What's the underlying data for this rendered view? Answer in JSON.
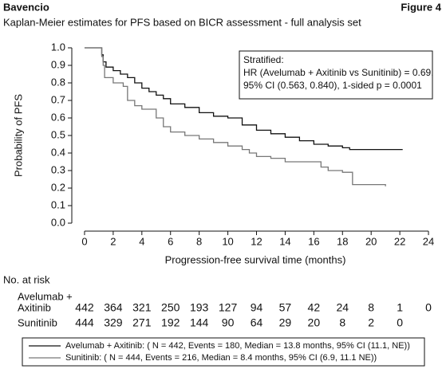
{
  "header": {
    "brand": "Bavencio",
    "figure": "Figure 4"
  },
  "chart_data": {
    "type": "step",
    "title": "Kaplan-Meier estimates for PFS based on BICR assessment - full analysis set",
    "x_label": "Progression-free survival time (months)",
    "y_label": "Probability of PFS",
    "xlim": [
      -1,
      25
    ],
    "xticks": [
      0,
      2,
      4,
      6,
      8,
      10,
      12,
      14,
      16,
      18,
      20,
      22,
      24
    ],
    "ylim": [
      0,
      1
    ],
    "yticks": [
      {
        "value": 0,
        "label": "0.0"
      },
      0.1,
      0.2,
      0.3,
      0.4,
      0.5,
      0.6,
      0.7,
      0.8,
      0.9,
      {
        "value": 1,
        "label": "1.0"
      }
    ],
    "annotation": [
      "Stratified:",
      "HR (Avelumab + Axitinib vs Sunitinib) = 0.69,",
      "95% CI (0.563, 0.840), 1-sided p = 0.0001"
    ],
    "series": [
      {
        "name": "Avelumab + Axitinib: ( N = 442, Events = 180, Median = 13.8 months, 95% CI (11.1, NE))",
        "color": "#111111",
        "x": [
          0,
          1.2,
          1.3,
          1.5,
          2,
          2.5,
          3,
          3.5,
          4,
          4.5,
          5,
          5.5,
          6,
          7,
          8,
          9,
          10,
          11,
          12,
          13,
          14,
          15,
          16,
          17,
          18,
          18.5,
          22.2
        ],
        "values": [
          1.0,
          0.96,
          0.92,
          0.89,
          0.87,
          0.85,
          0.83,
          0.8,
          0.77,
          0.75,
          0.73,
          0.71,
          0.68,
          0.66,
          0.63,
          0.61,
          0.6,
          0.56,
          0.53,
          0.51,
          0.49,
          0.47,
          0.45,
          0.44,
          0.43,
          0.42,
          0.42
        ]
      },
      {
        "name": "Sunitinib: ( N = 444, Events = 216, Median = 8.4 months, 95% CI (6.9, 11.1 NE))",
        "color": "#777777",
        "x": [
          0,
          1.2,
          1.3,
          1.4,
          2,
          2.7,
          3,
          3.5,
          4,
          5,
          5.5,
          6,
          7,
          8,
          9,
          10,
          11,
          11.5,
          12,
          13,
          14,
          16,
          16.5,
          17,
          18,
          18.7,
          21
        ],
        "values": [
          1.0,
          0.95,
          0.9,
          0.83,
          0.8,
          0.78,
          0.7,
          0.67,
          0.65,
          0.6,
          0.55,
          0.52,
          0.5,
          0.48,
          0.46,
          0.44,
          0.42,
          0.4,
          0.38,
          0.37,
          0.35,
          0.35,
          0.32,
          0.3,
          0.29,
          0.22,
          0.21
        ]
      }
    ],
    "risk_table": {
      "title": "No. at risk",
      "rows": [
        {
          "label": [
            "Avelumab +",
            "Axitinib"
          ],
          "values": [
            442,
            364,
            321,
            250,
            193,
            127,
            94,
            57,
            42,
            24,
            8,
            1,
            0
          ]
        },
        {
          "label": [
            "Sunitinib"
          ],
          "values": [
            444,
            329,
            271,
            192,
            144,
            90,
            64,
            29,
            20,
            8,
            2,
            0
          ]
        }
      ]
    }
  }
}
